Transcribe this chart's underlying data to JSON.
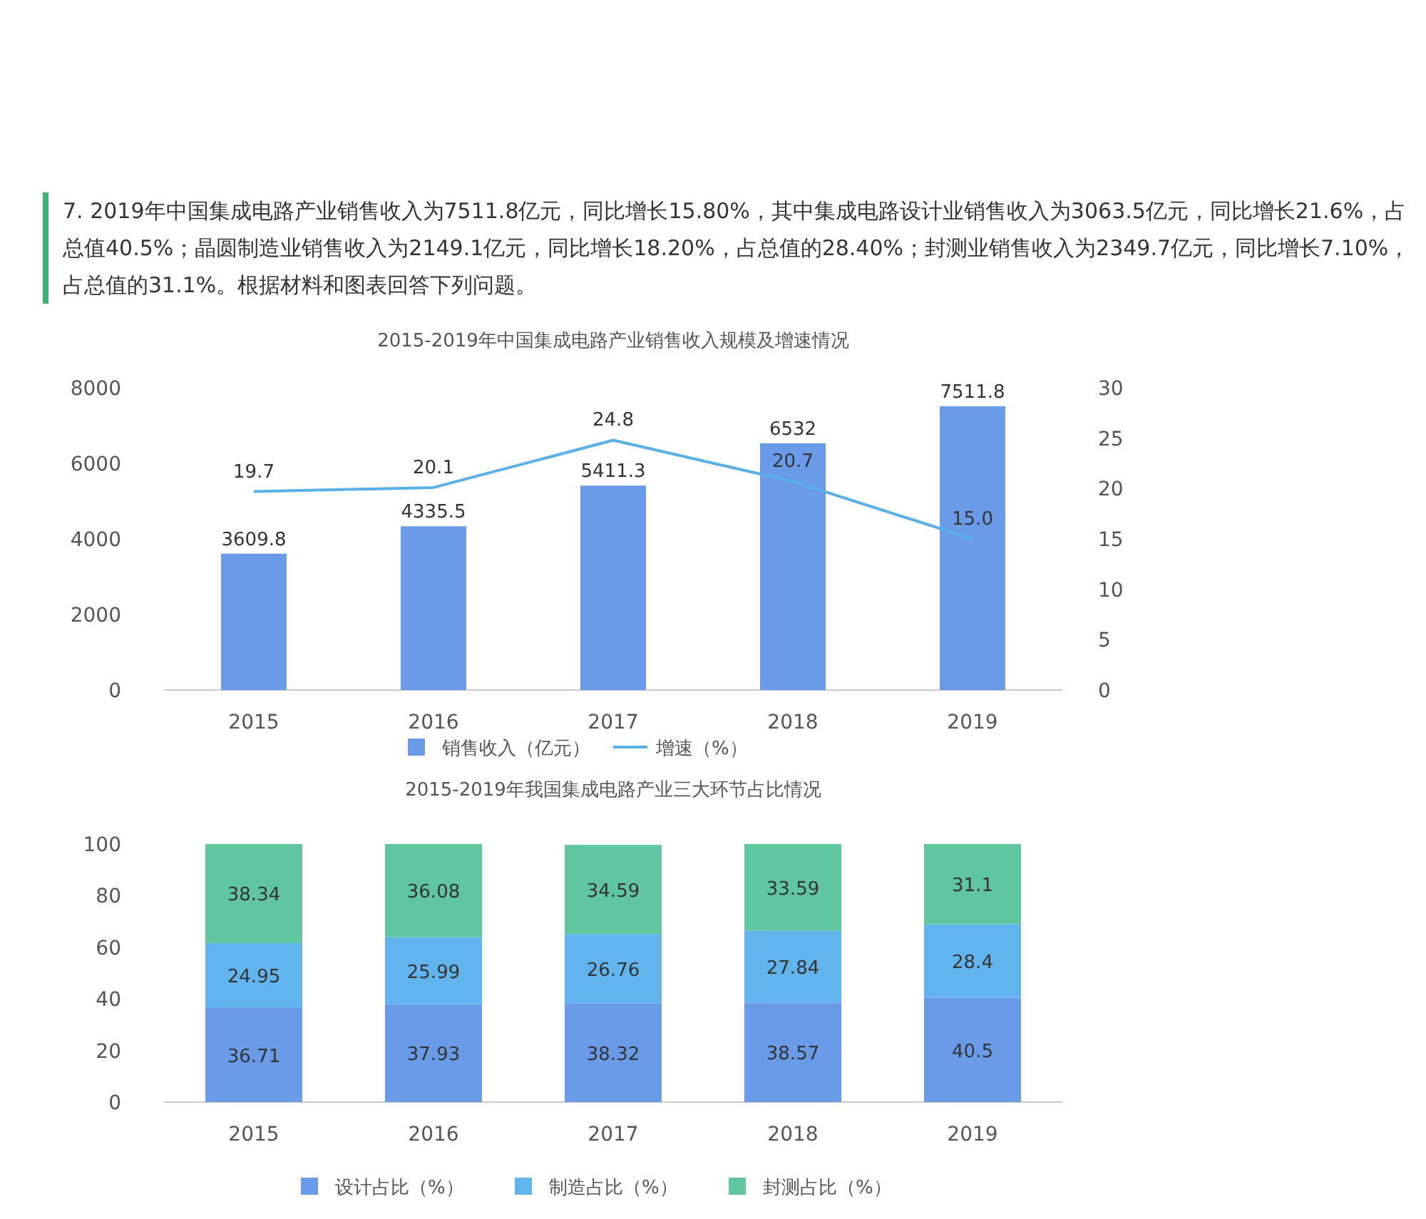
{
  "chart_data": [
    {
      "type": "bar",
      "title": "2015-2019年中国集成电路产业销售收入规模及增速情况",
      "annotations": [
        "7. 2019年中国集成电路产业销售收入为7511.8亿元，同比增长15.80%，其中集成电路设计业销售收入为3063.5亿元，同比增长21.6%，占总值40.5%；晶圆制造业销售收入为2149.1亿元，同比增长18.20%，占总值的28.40%；封测业销售收入为2349.7亿元，同比增长7.10%，占总值的31.1%。根据材料和图表回答下列问题。"
      ],
      "categories": [
        "2015",
        "2016",
        "2017",
        "2018",
        "2019"
      ],
      "series": [
        {
          "name": "销售收入（亿元）",
          "type": "bar",
          "color": "#6a9be8",
          "values": [
            3609.8,
            4335.5,
            5411.3,
            6532,
            7511.8
          ]
        },
        {
          "name": "增速（%）",
          "type": "line",
          "axis": "y2",
          "color": "#5ab0e8",
          "values": [
            19.7,
            20.1,
            24.8,
            20.7,
            15.0
          ],
          "value_labels": [
            "19.7",
            "20.1",
            "24.8",
            "20.7",
            "15.0"
          ]
        }
      ],
      "ylim": [
        0,
        8000
      ],
      "yticks": [
        0,
        2000,
        4000,
        6000,
        8000
      ],
      "y2lim": [
        0,
        30
      ],
      "y2ticks": [
        0,
        5,
        10,
        15,
        20,
        25,
        30
      ],
      "data_labels": true,
      "legend": "bottom",
      "marker": "none",
      "grid": false
    },
    {
      "type": "bar",
      "title": "2015-2019年我国集成电路产业三大环节占比情况",
      "categories": [
        "2015",
        "2016",
        "2017",
        "2018",
        "2019"
      ],
      "stacked": true,
      "series": [
        {
          "name": "设计占比（%）",
          "color": "#6a9be8",
          "values": [
            36.71,
            37.93,
            38.32,
            38.57,
            40.5
          ]
        },
        {
          "name": "制造占比（%）",
          "color": "#62b4ee",
          "values": [
            24.95,
            25.99,
            26.76,
            27.84,
            28.4
          ]
        },
        {
          "name": "封测占比（%）",
          "color": "#5fc6a0",
          "values": [
            38.34,
            36.08,
            34.59,
            33.59,
            31.1
          ]
        }
      ],
      "ylim": [
        0,
        100
      ],
      "yticks": [
        0,
        20,
        40,
        60,
        80,
        100
      ],
      "data_labels": true,
      "legend": "bottom",
      "grid": false
    }
  ]
}
